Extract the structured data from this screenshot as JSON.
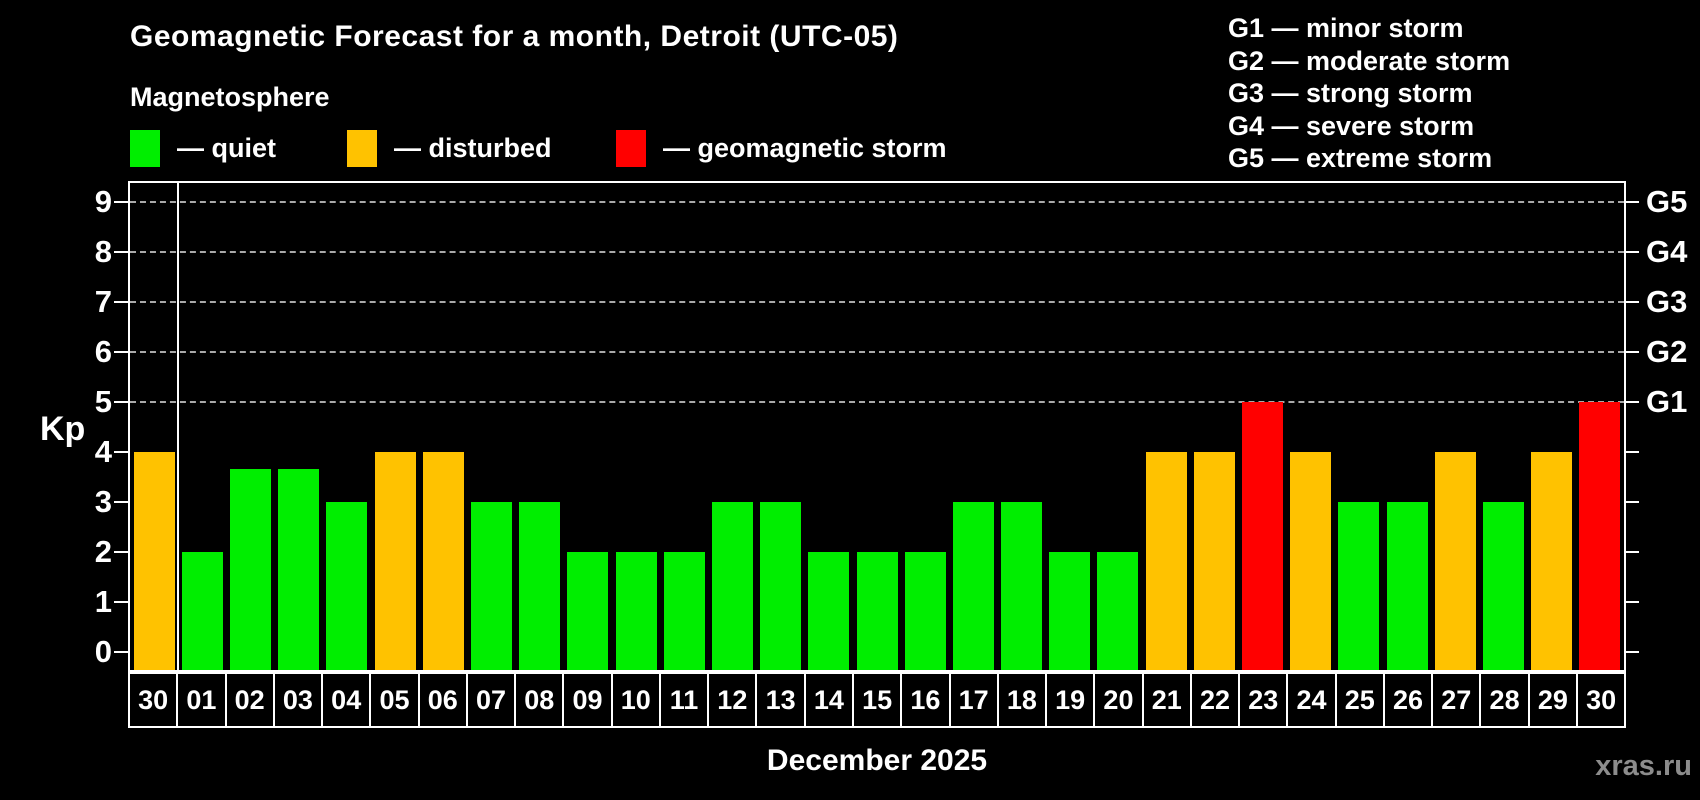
{
  "header": {
    "title": "Geomagnetic Forecast for a month, Detroit (UTC-05)",
    "subtitle": "Magnetosphere"
  },
  "legend": {
    "items": [
      {
        "label": "— quiet",
        "status": "quiet",
        "color": "#00ee00"
      },
      {
        "label": "— disturbed",
        "status": "disturbed",
        "color": "#ffc200"
      },
      {
        "label": "— geomagnetic storm",
        "status": "storm",
        "color": "#ff0000"
      }
    ]
  },
  "storm_scale": [
    "G1 — minor storm",
    "G2 — moderate storm",
    "G3 — strong storm",
    "G4 — severe storm",
    "G5 — extreme storm"
  ],
  "watermark": {
    "text": "xras.ru",
    "color": "#8c8c8c"
  },
  "chart_data": {
    "type": "bar",
    "title": "Geomagnetic Forecast for a month, Detroit (UTC-05)",
    "xlabel": "December 2025",
    "ylabel": "Kp",
    "ylim": [
      0,
      9
    ],
    "yticks": [
      0,
      1,
      2,
      3,
      4,
      5,
      6,
      7,
      8,
      9
    ],
    "grid": "dashed horizontal lines at Kp 5-9 (G1-G5 storm levels)",
    "legend_position": "top-left",
    "categories": [
      "30",
      "01",
      "02",
      "03",
      "04",
      "05",
      "06",
      "07",
      "08",
      "09",
      "10",
      "11",
      "12",
      "13",
      "14",
      "15",
      "16",
      "17",
      "18",
      "19",
      "20",
      "21",
      "22",
      "23",
      "24",
      "25",
      "26",
      "27",
      "28",
      "29",
      "30"
    ],
    "values": [
      4,
      2,
      3.67,
      3.67,
      3,
      4,
      4,
      3,
      3,
      2,
      2,
      2,
      3,
      3,
      2,
      2,
      2,
      3,
      3,
      2,
      2,
      4,
      4,
      5,
      4,
      3,
      3,
      4,
      3,
      4,
      5
    ],
    "statuses": [
      "disturbed",
      "quiet",
      "quiet",
      "quiet",
      "quiet",
      "disturbed",
      "disturbed",
      "quiet",
      "quiet",
      "quiet",
      "quiet",
      "quiet",
      "quiet",
      "quiet",
      "quiet",
      "quiet",
      "quiet",
      "quiet",
      "quiet",
      "quiet",
      "quiet",
      "disturbed",
      "disturbed",
      "storm",
      "disturbed",
      "quiet",
      "quiet",
      "disturbed",
      "quiet",
      "disturbed",
      "storm"
    ],
    "status_colors": {
      "quiet": "#00ee00",
      "disturbed": "#ffc200",
      "storm": "#ff0000"
    },
    "g_levels": [
      {
        "kp": 5,
        "label": "G1"
      },
      {
        "kp": 6,
        "label": "G2"
      },
      {
        "kp": 7,
        "label": "G3"
      },
      {
        "kp": 8,
        "label": "G4"
      },
      {
        "kp": 9,
        "label": "G5"
      }
    ],
    "prev_month_divider_after_index": 0
  }
}
